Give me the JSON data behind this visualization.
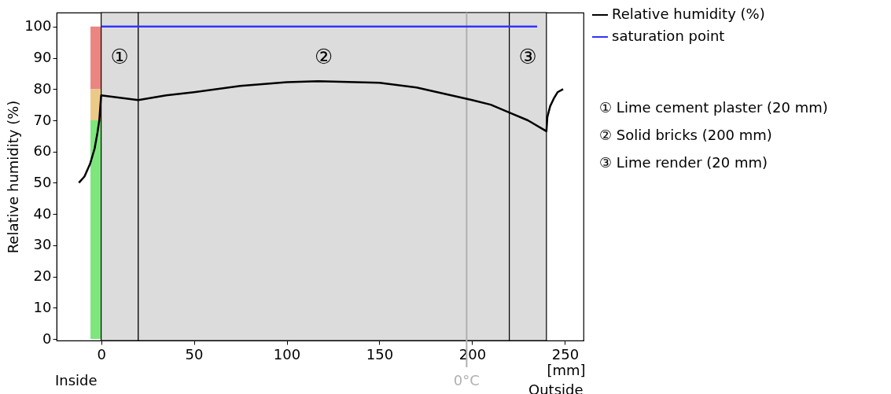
{
  "chart_data": {
    "type": "line",
    "ylabel": "Relative humidity (%)",
    "xlabel": "[mm]",
    "xlim": [
      -24,
      260
    ],
    "xticks": [
      0,
      50,
      100,
      150,
      200,
      250
    ],
    "ylim": [
      -0.5,
      104.5
    ],
    "yticks": [
      0,
      10,
      20,
      30,
      40,
      50,
      60,
      70,
      80,
      90,
      100
    ],
    "grid": false,
    "legend": "top right",
    "marker": "none",
    "line_style": "solid",
    "series": [
      {
        "name": "Relative humidity (%)",
        "color": "#000000",
        "x": [
          -12,
          -9,
          -6,
          -3.5,
          -2,
          -1,
          0,
          20,
          35,
          50,
          75,
          100,
          117,
          150,
          170,
          185,
          200,
          210,
          220,
          230,
          240,
          240.5,
          242,
          244,
          246,
          249
        ],
        "values": [
          50,
          52,
          56,
          61,
          66,
          70,
          78,
          76.5,
          78,
          79,
          81,
          82.2,
          82.5,
          82,
          80.5,
          78.5,
          76.5,
          75,
          72.5,
          70,
          66.5,
          71,
          74.5,
          77,
          79,
          80
        ]
      },
      {
        "name": "saturation point",
        "color": "#3333ff",
        "x": [
          0,
          235
        ],
        "values": [
          100,
          100
        ]
      },
      {
        "type": "bar",
        "color": "#7de67d",
        "x": [
          -3
        ],
        "base": [
          0
        ],
        "values": [
          70
        ]
      },
      {
        "type": "bar",
        "color": "#ebc987",
        "x": [
          -3
        ],
        "base": [
          70
        ],
        "values": [
          10
        ]
      },
      {
        "type": "bar",
        "color": "#eb8580",
        "x": [
          -3
        ],
        "base": [
          80
        ],
        "values": [
          20
        ]
      }
    ],
    "bands": [
      {
        "axis": "x",
        "from": 0,
        "to": 20,
        "label": "①",
        "color": "#dcdcdc"
      },
      {
        "axis": "x",
        "from": 20,
        "to": 220,
        "label": "②",
        "color": "#dcdcdc"
      },
      {
        "axis": "x",
        "from": 220,
        "to": 240,
        "label": "③",
        "color": "#dcdcdc"
      }
    ],
    "ref_lines": [
      {
        "axis": "x",
        "value": 197,
        "label": "0°C",
        "color": "#b0b0b0"
      }
    ],
    "annotations": [
      "① Lime cement plaster (20 mm)",
      "② Solid bricks (200 mm)",
      "③ Lime render (20 mm)",
      "Inside",
      "Outside"
    ]
  }
}
